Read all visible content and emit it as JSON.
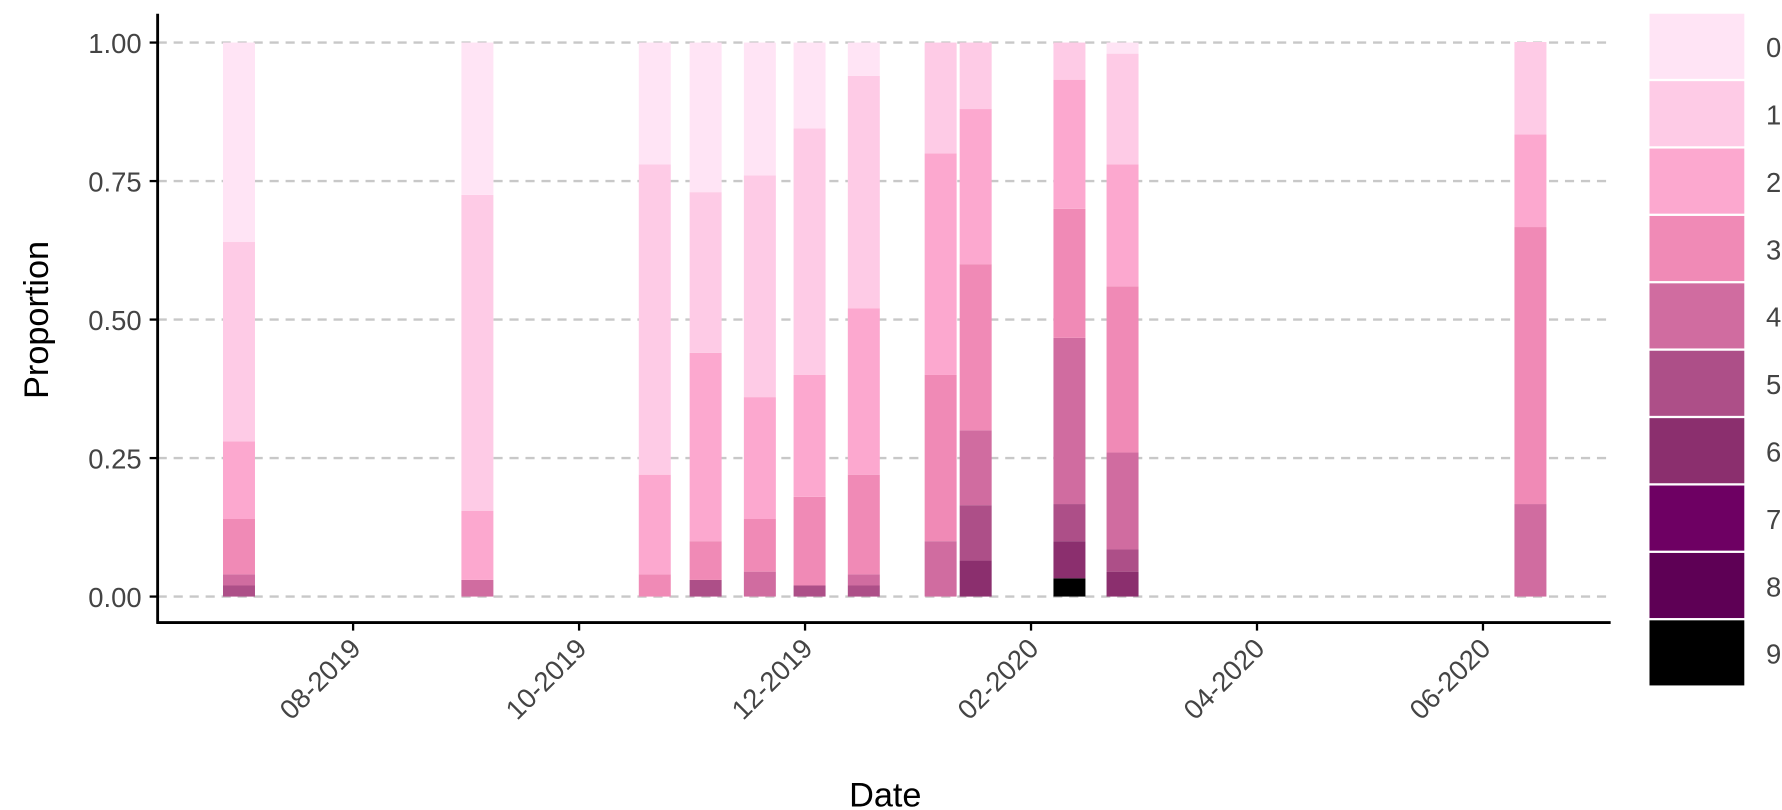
{
  "chart_data": {
    "type": "stacked_bar",
    "x_label": "Date",
    "y_label": "Proportion",
    "x": [
      6.99,
      9.1,
      10.67,
      11.12,
      11.6,
      12.04,
      12.52,
      13.2,
      13.51,
      14.34,
      14.81,
      18.42
    ],
    "xlim": [
      6.27,
      19.13
    ],
    "xticks": [
      {
        "value": 8,
        "label": "08-2019"
      },
      {
        "value": 10,
        "label": "10-2019"
      },
      {
        "value": 12,
        "label": "12-2019"
      },
      {
        "value": 14,
        "label": "02-2020"
      },
      {
        "value": 16,
        "label": "04-2020"
      },
      {
        "value": 18,
        "label": "06-2020"
      }
    ],
    "ylim": [
      -0.047,
      1.052
    ],
    "yticks": [
      {
        "value": 0,
        "label": "0.00"
      },
      {
        "value": 0.25,
        "label": "0.25"
      },
      {
        "value": 0.5,
        "label": "0.50"
      },
      {
        "value": 0.75,
        "label": "0.75"
      },
      {
        "value": 1,
        "label": "1.00"
      }
    ],
    "grid": true,
    "legend": "right",
    "series": [
      {
        "name": "0",
        "color": "#ffe4f5",
        "values": [
          0.36,
          0.275,
          0.22,
          0.27,
          0.24,
          0.155,
          0.06,
          0,
          0,
          0,
          0.02,
          0
        ]
      },
      {
        "name": "1",
        "color": "#fecbe6",
        "values": [
          0.36,
          0.57,
          0.56,
          0.29,
          0.4,
          0.445,
          0.42,
          0.2,
          0.12,
          0.067,
          0.2,
          0.167
        ]
      },
      {
        "name": "2",
        "color": "#fca8cf",
        "values": [
          0.14,
          0.125,
          0.18,
          0.34,
          0.22,
          0.22,
          0.3,
          0.4,
          0.28,
          0.233,
          0.22,
          0.167
        ]
      },
      {
        "name": "3",
        "color": "#f08ab6",
        "values": [
          0.1,
          0,
          0.04,
          0.07,
          0.095,
          0.16,
          0.18,
          0.3,
          0.3,
          0.233,
          0.3,
          0.5
        ]
      },
      {
        "name": "4",
        "color": "#d06ca0",
        "values": [
          0.02,
          0.03,
          0,
          0,
          0.045,
          0,
          0.02,
          0.1,
          0.135,
          0.3,
          0.175,
          0.167
        ]
      },
      {
        "name": "5",
        "color": "#ad4f88",
        "values": [
          0.02,
          0,
          0,
          0.03,
          0,
          0.02,
          0.02,
          0,
          0.1,
          0.067,
          0.04,
          0
        ]
      },
      {
        "name": "6",
        "color": "#8b2f6e",
        "values": [
          0,
          0,
          0,
          0,
          0,
          0,
          0,
          0,
          0.065,
          0.067,
          0.045,
          0
        ]
      },
      {
        "name": "7",
        "color": "#6e0063",
        "values": [
          0,
          0,
          0,
          0,
          0,
          0,
          0,
          0,
          0,
          0,
          0,
          0
        ]
      },
      {
        "name": "8",
        "color": "#5e0055",
        "values": [
          0,
          0,
          0,
          0,
          0,
          0,
          0,
          0,
          0,
          0,
          0,
          0
        ]
      },
      {
        "name": "9",
        "color": "#000000",
        "values": [
          0,
          0,
          0,
          0,
          0,
          0,
          0,
          0,
          0,
          0.033,
          0,
          0
        ]
      }
    ]
  }
}
